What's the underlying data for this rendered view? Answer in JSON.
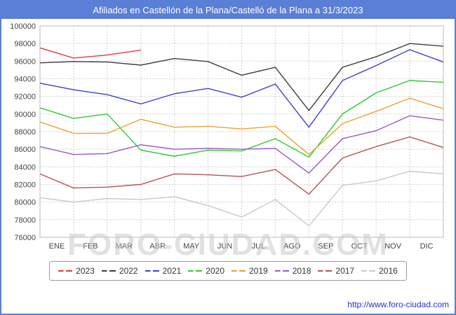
{
  "title": "Afiliados en Castellón de la Plana/Castelló de la Plana a 31/3/2023",
  "watermark": "FORO-CIUDAD.COM",
  "footer_url": "http://www.foro-ciudad.com",
  "colors": {
    "frame_blue": "#5b7fd6",
    "grid": "#cfcfcf",
    "watermark_gray": "#c9c9c9"
  },
  "chart_data": {
    "type": "line",
    "title": "Afiliados en Castellón de la Plana/Castelló de la Plana a 31/3/2023",
    "x_categories": [
      "ENE",
      "FEB",
      "MAR",
      "ABR",
      "MAY",
      "JUN",
      "JUL",
      "AGO",
      "SEP",
      "OCT",
      "NOV",
      "DIC"
    ],
    "xlabel": "",
    "ylabel": "",
    "y_min": 76000,
    "y_max": 100000,
    "y_tick_step": 2000,
    "grid": true,
    "legend_position": "bottom",
    "note": "First value of each series is the level at the start of the year (left axis edge), followed by 12 monthly values ENE-DIC. 2023 series ends at MAR.",
    "series": [
      {
        "name": "2023",
        "color": "#e03a3a",
        "values": [
          97500,
          96350,
          96700,
          97250
        ]
      },
      {
        "name": "2022",
        "color": "#3f3f3f",
        "values": [
          95800,
          95950,
          95900,
          95550,
          96300,
          95950,
          94400,
          95300,
          90400,
          95300,
          96500,
          98000,
          97700
        ]
      },
      {
        "name": "2021",
        "color": "#3f3fd0",
        "values": [
          93500,
          92750,
          92200,
          91150,
          92300,
          92900,
          91900,
          93400,
          88500,
          93800,
          95500,
          97300,
          95900
        ]
      },
      {
        "name": "2020",
        "color": "#2ecc2e",
        "values": [
          90700,
          89500,
          90000,
          85900,
          85200,
          85900,
          85800,
          87200,
          85100,
          90000,
          92400,
          93800,
          93600
        ]
      },
      {
        "name": "2019",
        "color": "#f0a030",
        "values": [
          89100,
          87800,
          87800,
          89400,
          88500,
          88600,
          88300,
          88600,
          85400,
          88900,
          90300,
          91800,
          90600
        ]
      },
      {
        "name": "2018",
        "color": "#9b59c8",
        "values": [
          86300,
          85400,
          85500,
          86500,
          86000,
          86100,
          86000,
          86100,
          83300,
          87200,
          88100,
          89800,
          89300
        ]
      },
      {
        "name": "2017",
        "color": "#b05555",
        "values": [
          83200,
          81600,
          81700,
          82000,
          83200,
          83100,
          82900,
          83700,
          80900,
          85000,
          86300,
          87400,
          86200
        ]
      },
      {
        "name": "2016",
        "color": "#c9c9c9",
        "values": [
          80500,
          80000,
          80400,
          80300,
          80600,
          79600,
          78300,
          80300,
          77300,
          81900,
          82400,
          83500,
          83200
        ]
      }
    ]
  }
}
